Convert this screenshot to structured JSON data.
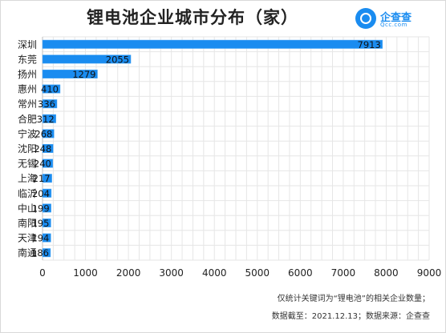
{
  "title": "锂电池企业城市分布（家）",
  "logo": {
    "name": "企查查",
    "sub": "Qcc.com"
  },
  "notes": [
    "仅统计关键词为“锂电池”的相关企业数量；",
    "数据截至：2021.12.13；数据来源：企查查"
  ],
  "colors": {
    "bar": "#1a8cf0",
    "grid": "#e6e6e6"
  },
  "chart_data": {
    "type": "bar",
    "orientation": "horizontal",
    "title": "锂电池企业城市分布（家）",
    "categories": [
      "深圳",
      "东莞",
      "扬州",
      "惠州",
      "常州",
      "合肥",
      "宁波",
      "沈阳",
      "无锡",
      "上海",
      "临沂",
      "中山",
      "南阳",
      "天津",
      "南通"
    ],
    "values": [
      7913,
      2055,
      1279,
      410,
      336,
      312,
      268,
      248,
      240,
      217,
      204,
      199,
      195,
      194,
      186
    ],
    "xlim": [
      0,
      9000
    ],
    "xticks": [
      0,
      1000,
      2000,
      3000,
      4000,
      5000,
      6000,
      7000,
      8000,
      9000
    ],
    "grid": true,
    "legend": "none"
  }
}
